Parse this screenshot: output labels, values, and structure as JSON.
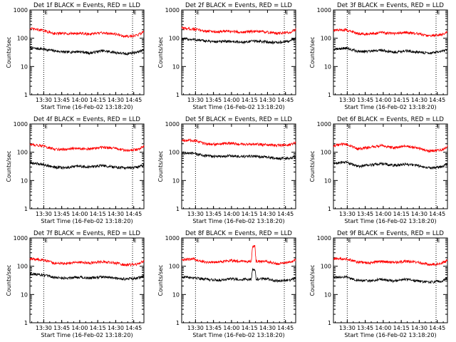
{
  "colors": {
    "events": "#000000",
    "lld": "#ff0000",
    "axes": "#000000",
    "background": "#ffffff"
  },
  "chart_data": [
    {
      "type": "line",
      "title": "Det 1f BLACK = Events, RED = LLD",
      "xlabel": "Start Time (16-Feb-02 13:18:20)",
      "ylabel": "Counts/sec",
      "y_scale": "log",
      "ylim": [
        1,
        1000
      ],
      "y_tick_labels": [
        "1",
        "10",
        "100",
        "1000"
      ],
      "x_tick_labels": [
        "13:30",
        "13:45",
        "14:00",
        "14:15",
        "14:30",
        "14:45"
      ],
      "x_unit": "minutes after 13:18:20",
      "xlim": [
        0,
        95
      ],
      "vertical_dotted_lines_at": [
        11.5,
        85.5
      ],
      "marker_labels": [
        "E",
        "E"
      ],
      "series": [
        {
          "name": "Events",
          "color": "#000000",
          "x": [
            0,
            10,
            20,
            30,
            40,
            50,
            60,
            70,
            80,
            90,
            95
          ],
          "y": [
            45,
            42,
            36,
            32,
            34,
            30,
            36,
            32,
            28,
            33,
            38
          ]
        },
        {
          "name": "LLD",
          "color": "#ff0000",
          "x": [
            0,
            10,
            20,
            30,
            40,
            50,
            60,
            70,
            80,
            90,
            95
          ],
          "y": [
            220,
            190,
            150,
            145,
            150,
            140,
            155,
            145,
            115,
            130,
            175
          ]
        }
      ]
    },
    {
      "type": "line",
      "title": "Det 2f BLACK = Events, RED = LLD",
      "xlabel": "Start Time (16-Feb-02 13:18:20)",
      "ylabel": "Counts/sec",
      "y_scale": "log",
      "ylim": [
        1,
        1000
      ],
      "y_tick_labels": [
        "1",
        "10",
        "100",
        "1000"
      ],
      "x_tick_labels": [
        "13:30",
        "13:45",
        "14:00",
        "14:15",
        "14:30",
        "14:45"
      ],
      "x_unit": "minutes after 13:18:20",
      "xlim": [
        0,
        95
      ],
      "vertical_dotted_lines_at": [
        11.5,
        85.5
      ],
      "marker_labels": [
        "E",
        "E"
      ],
      "series": [
        {
          "name": "Events",
          "color": "#000000",
          "x": [
            0,
            10,
            20,
            30,
            40,
            50,
            60,
            70,
            80,
            90,
            95
          ],
          "y": [
            95,
            90,
            80,
            75,
            78,
            72,
            80,
            75,
            70,
            80,
            100
          ]
        },
        {
          "name": "LLD",
          "color": "#ff0000",
          "x": [
            0,
            10,
            20,
            30,
            40,
            50,
            60,
            70,
            80,
            90,
            95
          ],
          "y": [
            230,
            210,
            180,
            170,
            175,
            165,
            175,
            165,
            150,
            160,
            210
          ]
        }
      ]
    },
    {
      "type": "line",
      "title": "Det 3f BLACK = Events, RED = LLD",
      "xlabel": "Start Time (16-Feb-02 13:18:20)",
      "ylabel": "Counts/sec",
      "y_scale": "log",
      "ylim": [
        1,
        1000
      ],
      "y_tick_labels": [
        "1",
        "10",
        "100",
        "1000"
      ],
      "x_tick_labels": [
        "13:30",
        "13:45",
        "14:00",
        "14:15",
        "14:30",
        "14:45"
      ],
      "x_unit": "minutes after 13:18:20",
      "xlim": [
        0,
        95
      ],
      "vertical_dotted_lines_at": [
        11.5,
        85.5
      ],
      "marker_labels": [
        "E",
        "E"
      ],
      "series": [
        {
          "name": "Events",
          "color": "#000000",
          "x": [
            0,
            10,
            20,
            30,
            40,
            50,
            60,
            70,
            80,
            90,
            95
          ],
          "y": [
            40,
            45,
            35,
            34,
            38,
            32,
            36,
            32,
            30,
            33,
            40
          ]
        },
        {
          "name": "LLD",
          "color": "#ff0000",
          "x": [
            0,
            10,
            20,
            30,
            40,
            50,
            60,
            70,
            80,
            90,
            95
          ],
          "y": [
            190,
            200,
            150,
            140,
            160,
            145,
            160,
            145,
            120,
            135,
            165
          ]
        }
      ]
    },
    {
      "type": "line",
      "title": "Det 4f BLACK = Events, RED = LLD",
      "xlabel": "Start Time (16-Feb-02 13:18:20)",
      "ylabel": "Counts/sec",
      "y_scale": "log",
      "ylim": [
        1,
        1000
      ],
      "y_tick_labels": [
        "1",
        "10",
        "100",
        "1000"
      ],
      "x_tick_labels": [
        "13:30",
        "13:45",
        "14:00",
        "14:15",
        "14:30",
        "14:45"
      ],
      "x_unit": "minutes after 13:18:20",
      "xlim": [
        0,
        95
      ],
      "vertical_dotted_lines_at": [
        11.5,
        85.5
      ],
      "marker_labels": [
        "E",
        "E"
      ],
      "series": [
        {
          "name": "Events",
          "color": "#000000",
          "x": [
            0,
            10,
            20,
            30,
            40,
            50,
            60,
            70,
            80,
            90,
            95
          ],
          "y": [
            42,
            38,
            30,
            28,
            32,
            30,
            34,
            30,
            28,
            30,
            36
          ]
        },
        {
          "name": "LLD",
          "color": "#ff0000",
          "x": [
            0,
            10,
            20,
            30,
            40,
            50,
            60,
            70,
            80,
            90,
            95
          ],
          "y": [
            190,
            170,
            130,
            125,
            140,
            130,
            150,
            140,
            115,
            125,
            160
          ]
        }
      ]
    },
    {
      "type": "line",
      "title": "Det 5f BLACK = Events, RED = LLD",
      "xlabel": "Start Time (16-Feb-02 13:18:20)",
      "ylabel": "Counts/sec",
      "y_scale": "log",
      "ylim": [
        1,
        1000
      ],
      "y_tick_labels": [
        "1",
        "10",
        "100",
        "1000"
      ],
      "x_tick_labels": [
        "13:30",
        "13:45",
        "14:00",
        "14:15",
        "14:30",
        "14:45"
      ],
      "x_unit": "minutes after 13:18:20",
      "xlim": [
        0,
        95
      ],
      "vertical_dotted_lines_at": [
        11.5,
        85.5
      ],
      "marker_labels": [
        "E",
        "E"
      ],
      "series": [
        {
          "name": "Events",
          "color": "#000000",
          "x": [
            0,
            10,
            20,
            30,
            40,
            50,
            60,
            70,
            80,
            90,
            95
          ],
          "y": [
            95,
            90,
            75,
            70,
            75,
            70,
            72,
            68,
            60,
            62,
            70
          ]
        },
        {
          "name": "LLD",
          "color": "#ff0000",
          "x": [
            0,
            10,
            20,
            30,
            40,
            50,
            60,
            70,
            80,
            90,
            95
          ],
          "y": [
            270,
            260,
            200,
            190,
            210,
            190,
            195,
            185,
            175,
            180,
            220
          ]
        }
      ]
    },
    {
      "type": "line",
      "title": "Det 6f BLACK = Events, RED = LLD",
      "xlabel": "Start Time (16-Feb-02 13:18:20)",
      "ylabel": "Counts/sec",
      "y_scale": "log",
      "ylim": [
        1,
        1000
      ],
      "y_tick_labels": [
        "1",
        "10",
        "100",
        "1000"
      ],
      "x_tick_labels": [
        "13:30",
        "13:45",
        "14:00",
        "14:15",
        "14:30",
        "14:45"
      ],
      "x_unit": "minutes after 13:18:20",
      "xlim": [
        0,
        95
      ],
      "vertical_dotted_lines_at": [
        11.5,
        85.5
      ],
      "marker_labels": [
        "E",
        "E"
      ],
      "series": [
        {
          "name": "Events",
          "color": "#000000",
          "x": [
            0,
            10,
            20,
            30,
            40,
            50,
            60,
            70,
            80,
            90,
            95
          ],
          "y": [
            40,
            45,
            32,
            35,
            40,
            34,
            38,
            34,
            28,
            30,
            38
          ]
        },
        {
          "name": "LLD",
          "color": "#ff0000",
          "x": [
            0,
            10,
            20,
            30,
            40,
            50,
            60,
            70,
            80,
            90,
            95
          ],
          "y": [
            170,
            200,
            130,
            150,
            170,
            145,
            165,
            145,
            110,
            120,
            160
          ]
        }
      ]
    },
    {
      "type": "line",
      "title": "Det 7f BLACK = Events, RED = LLD",
      "xlabel": "Start Time (16-Feb-02 13:18:20)",
      "ylabel": "Counts/sec",
      "y_scale": "log",
      "ylim": [
        1,
        1000
      ],
      "y_tick_labels": [
        "1",
        "10",
        "100",
        "1000"
      ],
      "x_tick_labels": [
        "13:30",
        "13:45",
        "14:00",
        "14:15",
        "14:30",
        "14:45"
      ],
      "x_unit": "minutes after 13:18:20",
      "xlim": [
        0,
        95
      ],
      "vertical_dotted_lines_at": [
        11.5,
        85.5
      ],
      "marker_labels": [
        "E",
        "E"
      ],
      "series": [
        {
          "name": "Events",
          "color": "#000000",
          "x": [
            0,
            10,
            20,
            30,
            40,
            50,
            60,
            70,
            80,
            90,
            95
          ],
          "y": [
            55,
            50,
            40,
            38,
            42,
            38,
            42,
            38,
            35,
            38,
            45
          ]
        },
        {
          "name": "LLD",
          "color": "#ff0000",
          "x": [
            0,
            10,
            20,
            30,
            40,
            50,
            60,
            70,
            80,
            90,
            95
          ],
          "y": [
            180,
            170,
            130,
            125,
            140,
            130,
            145,
            135,
            110,
            120,
            160
          ]
        }
      ]
    },
    {
      "type": "line",
      "title": "Det 8f BLACK = Events, RED = LLD",
      "xlabel": "Start Time (16-Feb-02 13:18:20)",
      "ylabel": "Counts/sec",
      "y_scale": "log",
      "ylim": [
        1,
        1000
      ],
      "y_tick_labels": [
        "1",
        "10",
        "100",
        "1000"
      ],
      "x_tick_labels": [
        "13:30",
        "13:45",
        "14:00",
        "14:15",
        "14:30",
        "14:45"
      ],
      "x_unit": "minutes after 13:18:20",
      "xlim": [
        0,
        95
      ],
      "vertical_dotted_lines_at": [
        11.5,
        85.5
      ],
      "marker_labels": [
        "E",
        "E"
      ],
      "series": [
        {
          "name": "Events",
          "color": "#000000",
          "x": [
            0,
            10,
            20,
            30,
            40,
            50,
            58,
            59,
            61,
            62,
            70,
            80,
            90,
            95
          ],
          "y": [
            42,
            40,
            35,
            32,
            36,
            34,
            35,
            80,
            80,
            35,
            36,
            30,
            32,
            38
          ]
        },
        {
          "name": "LLD",
          "color": "#ff0000",
          "x": [
            0,
            10,
            20,
            30,
            40,
            50,
            58,
            59,
            61,
            62,
            70,
            80,
            90,
            95
          ],
          "y": [
            170,
            180,
            140,
            140,
            160,
            150,
            150,
            500,
            500,
            150,
            150,
            120,
            135,
            170
          ]
        }
      ]
    },
    {
      "type": "line",
      "title": "Det 9f BLACK = Events, RED = LLD",
      "xlabel": "Start Time (16-Feb-02 13:18:20)",
      "ylabel": "Counts/sec",
      "y_scale": "log",
      "ylim": [
        1,
        1000
      ],
      "y_tick_labels": [
        "1",
        "10",
        "100",
        "1000"
      ],
      "x_tick_labels": [
        "13:30",
        "13:45",
        "14:00",
        "14:15",
        "14:30",
        "14:45"
      ],
      "x_unit": "minutes after 13:18:20",
      "xlim": [
        0,
        95
      ],
      "vertical_dotted_lines_at": [
        11.5,
        85.5
      ],
      "marker_labels": [
        "E",
        "E"
      ],
      "series": [
        {
          "name": "Events",
          "color": "#000000",
          "x": [
            0,
            10,
            20,
            30,
            40,
            50,
            60,
            70,
            80,
            90,
            95
          ],
          "y": [
            40,
            42,
            32,
            30,
            35,
            30,
            34,
            30,
            27,
            30,
            36
          ]
        },
        {
          "name": "LLD",
          "color": "#ff0000",
          "x": [
            0,
            10,
            20,
            30,
            40,
            50,
            60,
            70,
            80,
            90,
            95
          ],
          "y": [
            180,
            190,
            140,
            130,
            150,
            135,
            150,
            140,
            115,
            125,
            165
          ]
        }
      ]
    }
  ]
}
